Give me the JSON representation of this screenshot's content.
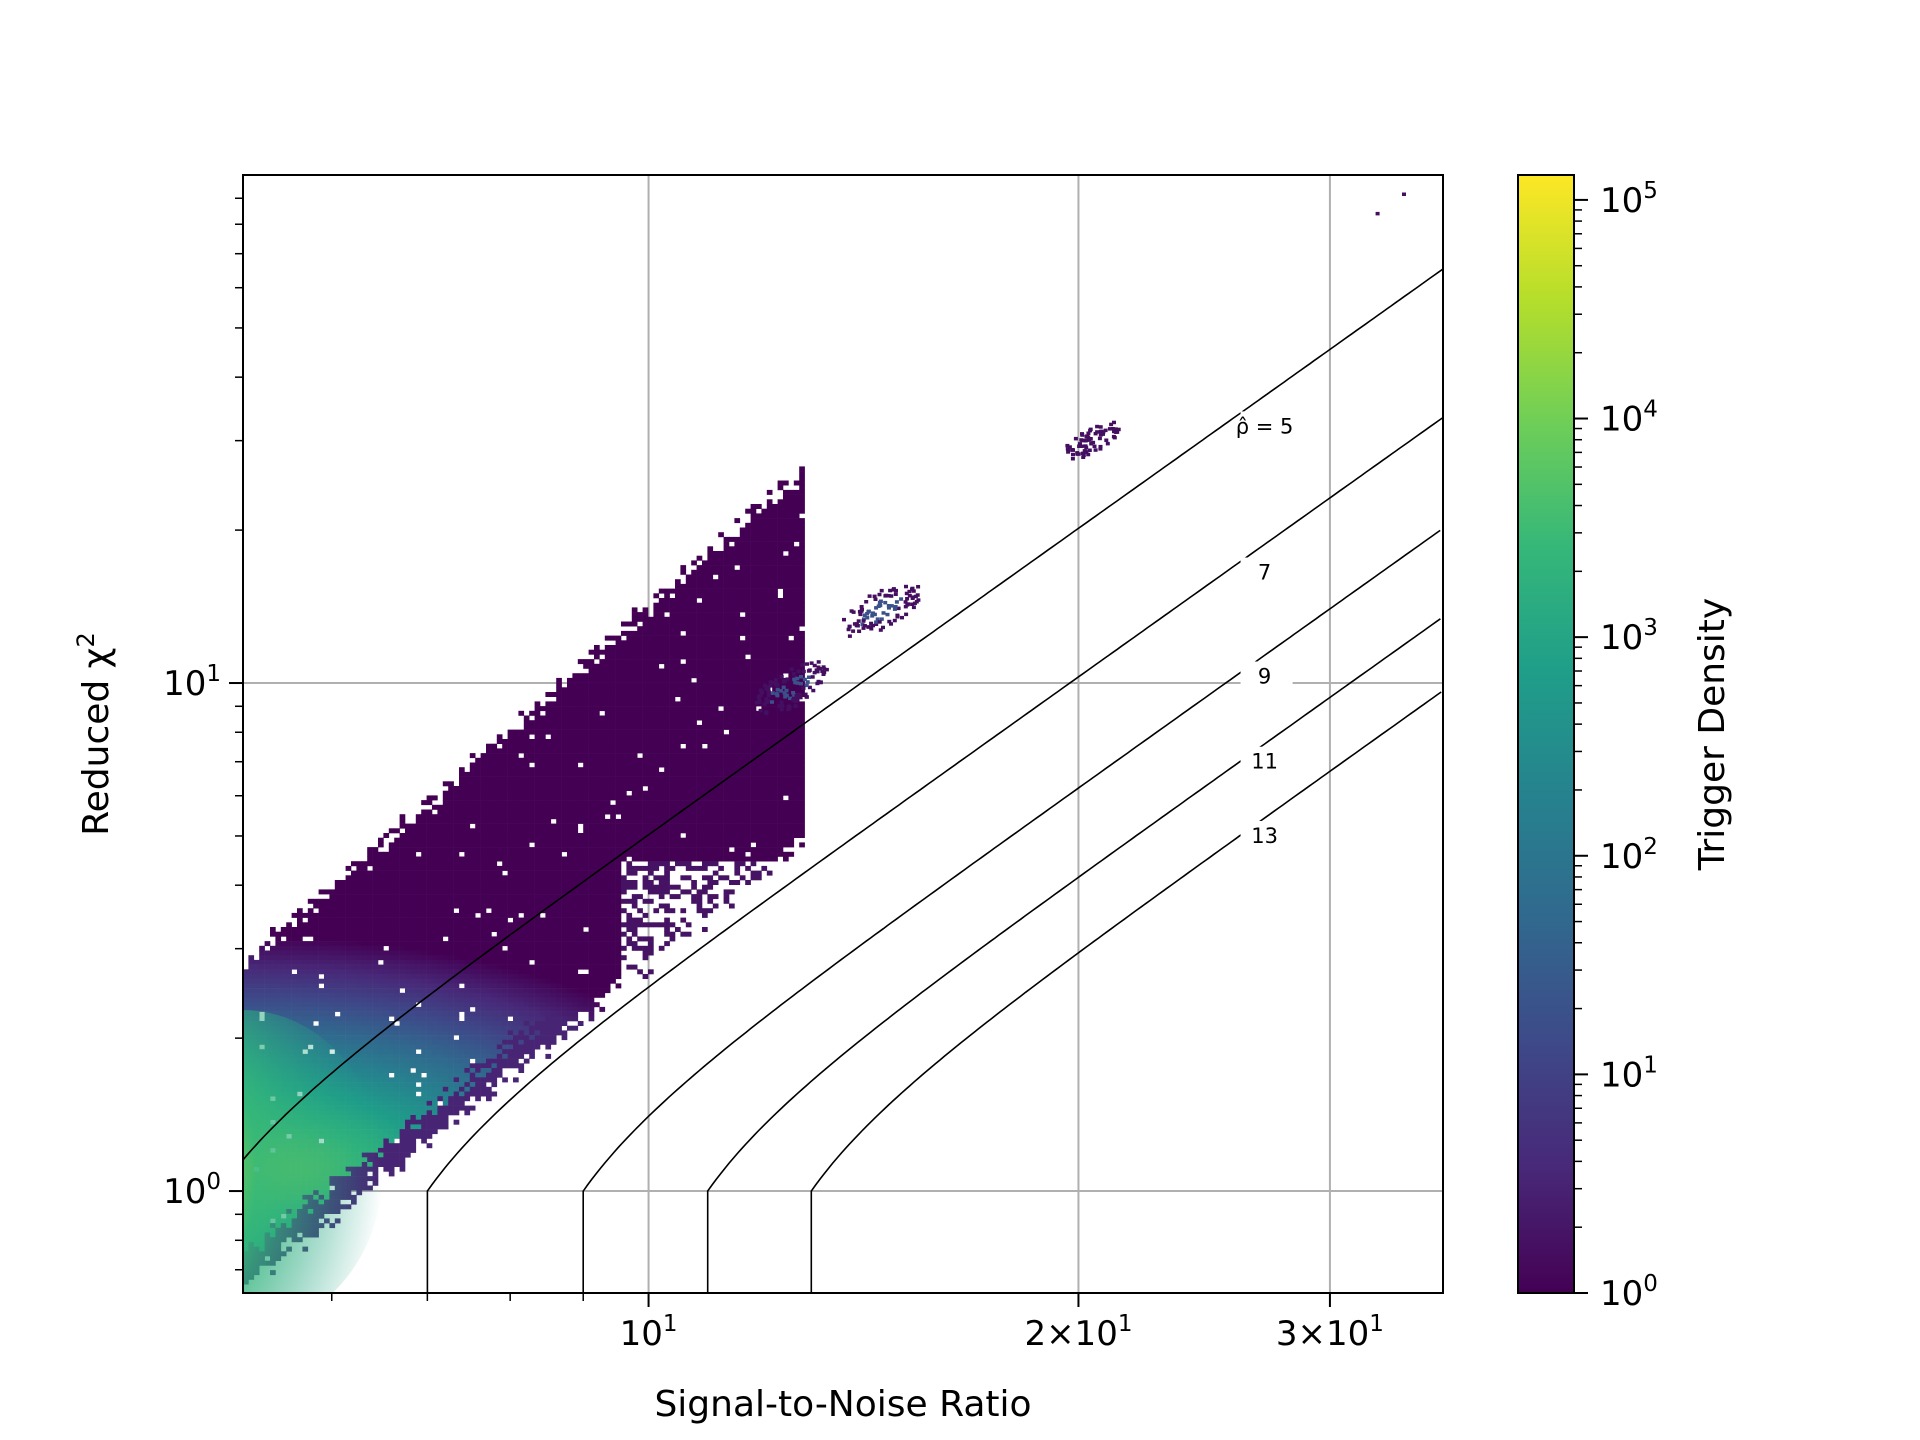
{
  "chart_data": {
    "type": "heatmap",
    "subtype": "hexbin-loglog-with-contours",
    "title": "",
    "xlabel": "Signal-to-Noise Ratio",
    "ylabel": "Reduced χ²",
    "xscale": "log",
    "yscale": "log",
    "xlim": [
      5.2,
      36
    ],
    "ylim": [
      0.63,
      100
    ],
    "x_ticks": [
      {
        "value": 10,
        "label": "10",
        "exp": "1",
        "prefix": ""
      },
      {
        "value": 20,
        "label": "10",
        "exp": "1",
        "prefix": "2×"
      },
      {
        "value": 30,
        "label": "10",
        "exp": "1",
        "prefix": "3×"
      }
    ],
    "y_ticks": [
      {
        "value": 1,
        "label": "10",
        "exp": "0"
      },
      {
        "value": 10,
        "label": "10",
        "exp": "1"
      }
    ],
    "grid": true,
    "colorbar": {
      "label": "Trigger Density",
      "scale": "log",
      "range": [
        1,
        130000
      ],
      "colormap": "viridis",
      "ticks": [
        {
          "value": 1,
          "label": "10",
          "exp": "0"
        },
        {
          "value": 10,
          "label": "10",
          "exp": "1"
        },
        {
          "value": 100,
          "label": "10",
          "exp": "2"
        },
        {
          "value": 1000,
          "label": "10",
          "exp": "3"
        },
        {
          "value": 10000,
          "label": "10",
          "exp": "4"
        },
        {
          "value": 100000,
          "label": "10",
          "exp": "5"
        }
      ]
    },
    "contours": [
      {
        "level": 5,
        "label": "ρ̂ = 5",
        "label_at": {
          "x": 27,
          "y": 32
        }
      },
      {
        "level": 7,
        "label": "7",
        "label_at": {
          "x": 27,
          "y": 16.5
        }
      },
      {
        "level": 9,
        "label": "9",
        "label_at": {
          "x": 27,
          "y": 10.3
        }
      },
      {
        "level": 11,
        "label": "11",
        "label_at": {
          "x": 27,
          "y": 7.0
        }
      },
      {
        "level": 13,
        "label": "13",
        "label_at": {
          "x": 27,
          "y": 5.0
        }
      }
    ],
    "density_regions": [
      {
        "name": "main-cloud",
        "description": "dense background band",
        "x_range": [
          5.2,
          12.5
        ],
        "y_lower": [
          0.63,
          1.0
        ],
        "y_upper": [
          2.8,
          8
        ]
      },
      {
        "name": "cluster-snr-12",
        "center": {
          "x": 12.5,
          "y": 9.8
        },
        "density": 10
      },
      {
        "name": "cluster-snr-14",
        "center": {
          "x": 14.5,
          "y": 14
        },
        "density": 20
      },
      {
        "name": "cluster-snr-20",
        "center": {
          "x": 20.3,
          "y": 30
        },
        "density": 3
      },
      {
        "name": "outlier",
        "center": {
          "x": 33,
          "y": 91
        },
        "density": 1
      }
    ]
  },
  "colors": {
    "grid": "#b0b0b0",
    "contour": "#000000",
    "viridis": [
      "#440154",
      "#482878",
      "#3e4989",
      "#31688e",
      "#26828e",
      "#1f9e89",
      "#35b779",
      "#6ece58",
      "#b5de2b",
      "#fde725"
    ]
  }
}
